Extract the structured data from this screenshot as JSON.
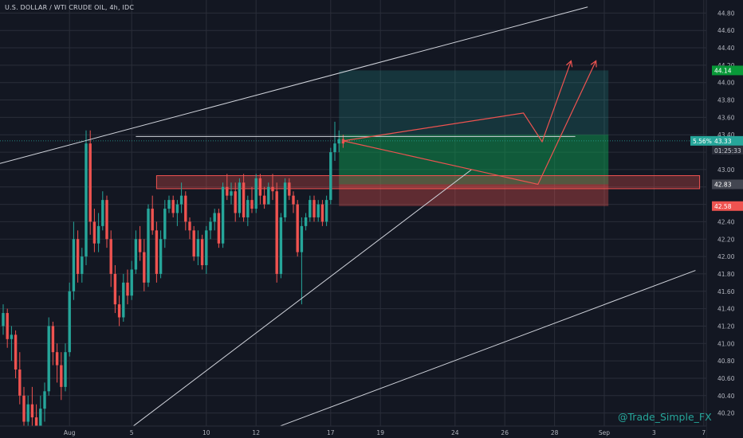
{
  "header": {
    "title": "U.S. DOLLAR / WTI CRUDE OIL, 4h, IDC"
  },
  "watermark": "@Trade_Simple_FX",
  "colors": {
    "background": "#131722",
    "grid": "#2a2e39",
    "bull": "#26a69a",
    "bear": "#ef5350",
    "text": "#b2b5be",
    "drawing": "#d1d4dc"
  },
  "chart_data": {
    "type": "candlestick",
    "ylim": [
      40.05,
      44.95
    ],
    "y_ticks": [
      "40.20",
      "40.40",
      "40.60",
      "40.80",
      "41.00",
      "41.20",
      "41.40",
      "41.60",
      "41.80",
      "42.00",
      "42.20",
      "42.40",
      "42.60",
      "42.80",
      "43.00",
      "43.20",
      "43.40",
      "43.60",
      "43.80",
      "44.00",
      "44.20",
      "44.40",
      "44.60",
      "44.80"
    ],
    "x_ticks": [
      {
        "label": "Aug",
        "bar": 16
      },
      {
        "label": "5",
        "bar": 31
      },
      {
        "label": "10",
        "bar": 49
      },
      {
        "label": "12",
        "bar": 61
      },
      {
        "label": "17",
        "bar": 79
      },
      {
        "label": "19",
        "bar": 91
      },
      {
        "label": "24",
        "bar": 109
      },
      {
        "label": "26",
        "bar": 121
      },
      {
        "label": "28",
        "bar": 133
      },
      {
        "label": "Sep",
        "bar": 145
      },
      {
        "label": "3",
        "bar": 157
      },
      {
        "label": "7",
        "bar": 169
      }
    ],
    "candles": [
      [
        41.2,
        41.45,
        41.1,
        41.35
      ],
      [
        41.35,
        41.4,
        40.95,
        41.05
      ],
      [
        41.05,
        41.2,
        40.8,
        41.1
      ],
      [
        41.1,
        41.15,
        40.6,
        40.7
      ],
      [
        40.7,
        40.9,
        40.3,
        40.4
      ],
      [
        40.4,
        40.5,
        39.95,
        40.1
      ],
      [
        40.1,
        40.4,
        40.05,
        40.3
      ],
      [
        40.3,
        40.5,
        40.0,
        40.15
      ],
      [
        40.15,
        40.3,
        39.95,
        40.05
      ],
      [
        40.05,
        40.4,
        40.0,
        40.25
      ],
      [
        40.25,
        40.55,
        40.1,
        40.45
      ],
      [
        40.45,
        41.3,
        40.4,
        41.2
      ],
      [
        41.2,
        41.25,
        40.75,
        40.9
      ],
      [
        40.9,
        41.0,
        40.55,
        40.75
      ],
      [
        40.75,
        40.9,
        40.35,
        40.5
      ],
      [
        40.5,
        41.0,
        40.45,
        40.9
      ],
      [
        40.9,
        41.7,
        40.85,
        41.6
      ],
      [
        41.6,
        42.4,
        41.5,
        42.2
      ],
      [
        42.2,
        42.3,
        41.7,
        41.8
      ],
      [
        41.8,
        42.1,
        41.7,
        42.0
      ],
      [
        42.0,
        43.45,
        41.9,
        43.3
      ],
      [
        43.3,
        43.45,
        42.25,
        42.4
      ],
      [
        42.4,
        42.55,
        42.05,
        42.15
      ],
      [
        42.15,
        42.5,
        42.05,
        42.35
      ],
      [
        42.35,
        42.75,
        42.3,
        42.65
      ],
      [
        42.65,
        42.7,
        42.1,
        42.2
      ],
      [
        42.2,
        42.3,
        41.65,
        41.8
      ],
      [
        41.8,
        41.9,
        41.35,
        41.45
      ],
      [
        41.45,
        41.55,
        41.2,
        41.3
      ],
      [
        41.3,
        41.8,
        41.25,
        41.7
      ],
      [
        41.7,
        41.85,
        41.45,
        41.55
      ],
      [
        41.55,
        41.95,
        41.5,
        41.85
      ],
      [
        41.85,
        42.3,
        41.8,
        42.2
      ],
      [
        42.2,
        42.35,
        41.95,
        42.05
      ],
      [
        42.05,
        42.2,
        41.6,
        41.7
      ],
      [
        41.7,
        42.6,
        41.65,
        42.55
      ],
      [
        42.55,
        42.7,
        42.25,
        42.3
      ],
      [
        42.3,
        42.4,
        41.7,
        41.8
      ],
      [
        41.8,
        42.3,
        41.75,
        42.2
      ],
      [
        42.2,
        42.65,
        42.1,
        42.55
      ],
      [
        42.55,
        42.7,
        42.5,
        42.65
      ],
      [
        42.65,
        42.7,
        42.45,
        42.5
      ],
      [
        42.5,
        42.65,
        42.35,
        42.6
      ],
      [
        42.6,
        42.85,
        42.5,
        42.7
      ],
      [
        42.7,
        42.75,
        42.3,
        42.4
      ],
      [
        42.4,
        42.45,
        42.2,
        42.3
      ],
      [
        42.3,
        42.35,
        41.95,
        42.0
      ],
      [
        42.0,
        42.3,
        41.9,
        42.2
      ],
      [
        42.2,
        42.25,
        41.85,
        41.9
      ],
      [
        41.9,
        42.35,
        41.8,
        42.3
      ],
      [
        42.3,
        42.45,
        42.2,
        42.4
      ],
      [
        42.4,
        42.55,
        42.3,
        42.5
      ],
      [
        42.5,
        42.55,
        42.1,
        42.15
      ],
      [
        42.15,
        42.85,
        42.1,
        42.8
      ],
      [
        42.8,
        42.95,
        42.65,
        42.7
      ],
      [
        42.7,
        42.85,
        42.6,
        42.75
      ],
      [
        42.75,
        42.85,
        42.4,
        42.5
      ],
      [
        42.5,
        42.9,
        42.45,
        42.85
      ],
      [
        42.85,
        42.95,
        42.4,
        42.45
      ],
      [
        42.45,
        42.7,
        42.35,
        42.65
      ],
      [
        42.65,
        42.8,
        42.5,
        42.55
      ],
      [
        42.55,
        42.95,
        42.5,
        42.9
      ],
      [
        42.9,
        42.95,
        42.6,
        42.7
      ],
      [
        42.7,
        42.8,
        42.55,
        42.6
      ],
      [
        42.6,
        42.85,
        42.6,
        42.8
      ],
      [
        42.8,
        42.95,
        42.65,
        42.75
      ],
      [
        42.75,
        42.85,
        41.7,
        41.8
      ],
      [
        41.8,
        42.5,
        41.75,
        42.45
      ],
      [
        42.45,
        42.9,
        42.4,
        42.85
      ],
      [
        42.85,
        42.9,
        42.65,
        42.7
      ],
      [
        42.7,
        42.75,
        42.5,
        42.6
      ],
      [
        42.6,
        42.65,
        42.0,
        42.05
      ],
      [
        42.05,
        42.45,
        41.45,
        42.35
      ],
      [
        42.35,
        42.5,
        42.3,
        42.45
      ],
      [
        42.45,
        42.7,
        42.4,
        42.65
      ],
      [
        42.65,
        42.7,
        42.4,
        42.45
      ],
      [
        42.45,
        42.65,
        42.4,
        42.6
      ],
      [
        42.6,
        42.65,
        42.35,
        42.4
      ],
      [
        42.4,
        42.7,
        42.35,
        42.65
      ],
      [
        42.65,
        43.25,
        42.6,
        43.2
      ],
      [
        43.2,
        43.55,
        43.1,
        43.3
      ],
      [
        43.3,
        43.45,
        43.2,
        43.35
      ],
      [
        43.35,
        43.4,
        43.25,
        43.3
      ]
    ],
    "annotations": {
      "resistance_level": 43.38,
      "support_zone": [
        42.78,
        42.93
      ],
      "target_price": 44.14,
      "entry_price": 42.83,
      "stop_price": 42.58,
      "current_price": 43.33,
      "change_percent": "5.56%",
      "countdown": "01:25:33"
    },
    "price_labels": {
      "target": "44.14",
      "current": "43.33",
      "change": "5.56%",
      "countdown": "01:25:33",
      "entry": "42.83",
      "stop": "42.58"
    }
  }
}
